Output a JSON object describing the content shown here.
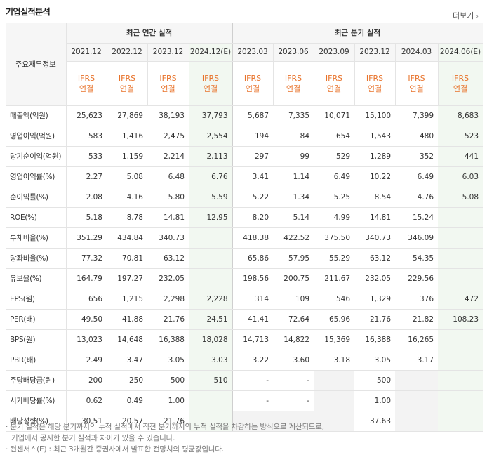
{
  "title": "기업실적분석",
  "more_label": "더보기",
  "corner_label": "주요재무정보",
  "groups": {
    "annual": "최근 연간 실적",
    "quarter": "최근 분기 실적"
  },
  "annual_periods": [
    "2021.12",
    "2022.12",
    "2023.12",
    "2024.12(E)"
  ],
  "quarter_periods": [
    "2023.03",
    "2023.06",
    "2023.09",
    "2023.12",
    "2024.03",
    "2024.06(E)"
  ],
  "ifrs_line1": "IFRS",
  "ifrs_line2": "연결",
  "rows": [
    {
      "label": "매출액(억원)",
      "vals": [
        "25,623",
        "27,869",
        "38,193",
        "37,793",
        "5,687",
        "7,335",
        "10,071",
        "15,100",
        "7,399",
        "8,683"
      ]
    },
    {
      "label": "영업이익(억원)",
      "vals": [
        "583",
        "1,416",
        "2,475",
        "2,554",
        "194",
        "84",
        "654",
        "1,543",
        "480",
        "523"
      ]
    },
    {
      "label": "당기순이익(억원)",
      "vals": [
        "533",
        "1,159",
        "2,214",
        "2,113",
        "297",
        "99",
        "529",
        "1,289",
        "352",
        "441"
      ]
    },
    {
      "label": "영업이익률(%)",
      "vals": [
        "2.27",
        "5.08",
        "6.48",
        "6.76",
        "3.41",
        "1.14",
        "6.49",
        "10.22",
        "6.49",
        "6.03"
      ]
    },
    {
      "label": "순이익률(%)",
      "vals": [
        "2.08",
        "4.16",
        "5.80",
        "5.59",
        "5.22",
        "1.34",
        "5.25",
        "8.54",
        "4.76",
        "5.08"
      ]
    },
    {
      "label": "ROE(%)",
      "vals": [
        "5.18",
        "8.78",
        "14.81",
        "12.95",
        "8.20",
        "5.14",
        "4.99",
        "14.81",
        "15.24",
        ""
      ]
    },
    {
      "label": "부채비율(%)",
      "vals": [
        "351.29",
        "434.84",
        "340.73",
        "",
        "418.38",
        "422.52",
        "375.50",
        "340.73",
        "346.09",
        ""
      ]
    },
    {
      "label": "당좌비율(%)",
      "vals": [
        "77.32",
        "70.81",
        "63.12",
        "",
        "65.86",
        "57.95",
        "55.29",
        "63.12",
        "54.35",
        ""
      ]
    },
    {
      "label": "유보율(%)",
      "vals": [
        "164.79",
        "197.27",
        "232.05",
        "",
        "198.56",
        "200.75",
        "211.67",
        "232.05",
        "229.56",
        ""
      ]
    },
    {
      "label": "EPS(원)",
      "vals": [
        "656",
        "1,215",
        "2,298",
        "2,228",
        "314",
        "109",
        "546",
        "1,329",
        "376",
        "472"
      ]
    },
    {
      "label": "PER(배)",
      "vals": [
        "49.50",
        "41.88",
        "21.76",
        "24.51",
        "41.41",
        "72.64",
        "65.96",
        "21.76",
        "21.82",
        "108.23"
      ]
    },
    {
      "label": "BPS(원)",
      "vals": [
        "13,023",
        "14,648",
        "16,388",
        "18,028",
        "14,713",
        "14,822",
        "15,369",
        "16,388",
        "16,265",
        ""
      ]
    },
    {
      "label": "PBR(배)",
      "vals": [
        "2.49",
        "3.47",
        "3.05",
        "3.03",
        "3.22",
        "3.60",
        "3.18",
        "3.05",
        "3.17",
        ""
      ]
    },
    {
      "label": "주당배당금(원)",
      "vals": [
        "200",
        "250",
        "500",
        "510",
        "-",
        "-",
        "",
        "500",
        "",
        ""
      ]
    },
    {
      "label": "시가배당률(%)",
      "vals": [
        "0.62",
        "0.49",
        "1.00",
        "",
        "-",
        "-",
        "",
        "1.00",
        "",
        ""
      ]
    },
    {
      "label": "배당성향(%)",
      "vals": [
        "30.51",
        "20.57",
        "21.76",
        "",
        "",
        "",
        "",
        "37.63",
        "",
        ""
      ]
    }
  ],
  "notes": [
    "분기 실적은 해당 분기까지의 누적 실적에서 직전 분기까지의 누적 실적을 차감하는 방식으로 계산되므로,",
    "기업에서 공시한 분기 실적과 차이가 있을 수 있습니다.",
    "컨센서스(E) : 최근 3개월간 증권사에서 발표한 전망치의 평균값입니다."
  ]
}
